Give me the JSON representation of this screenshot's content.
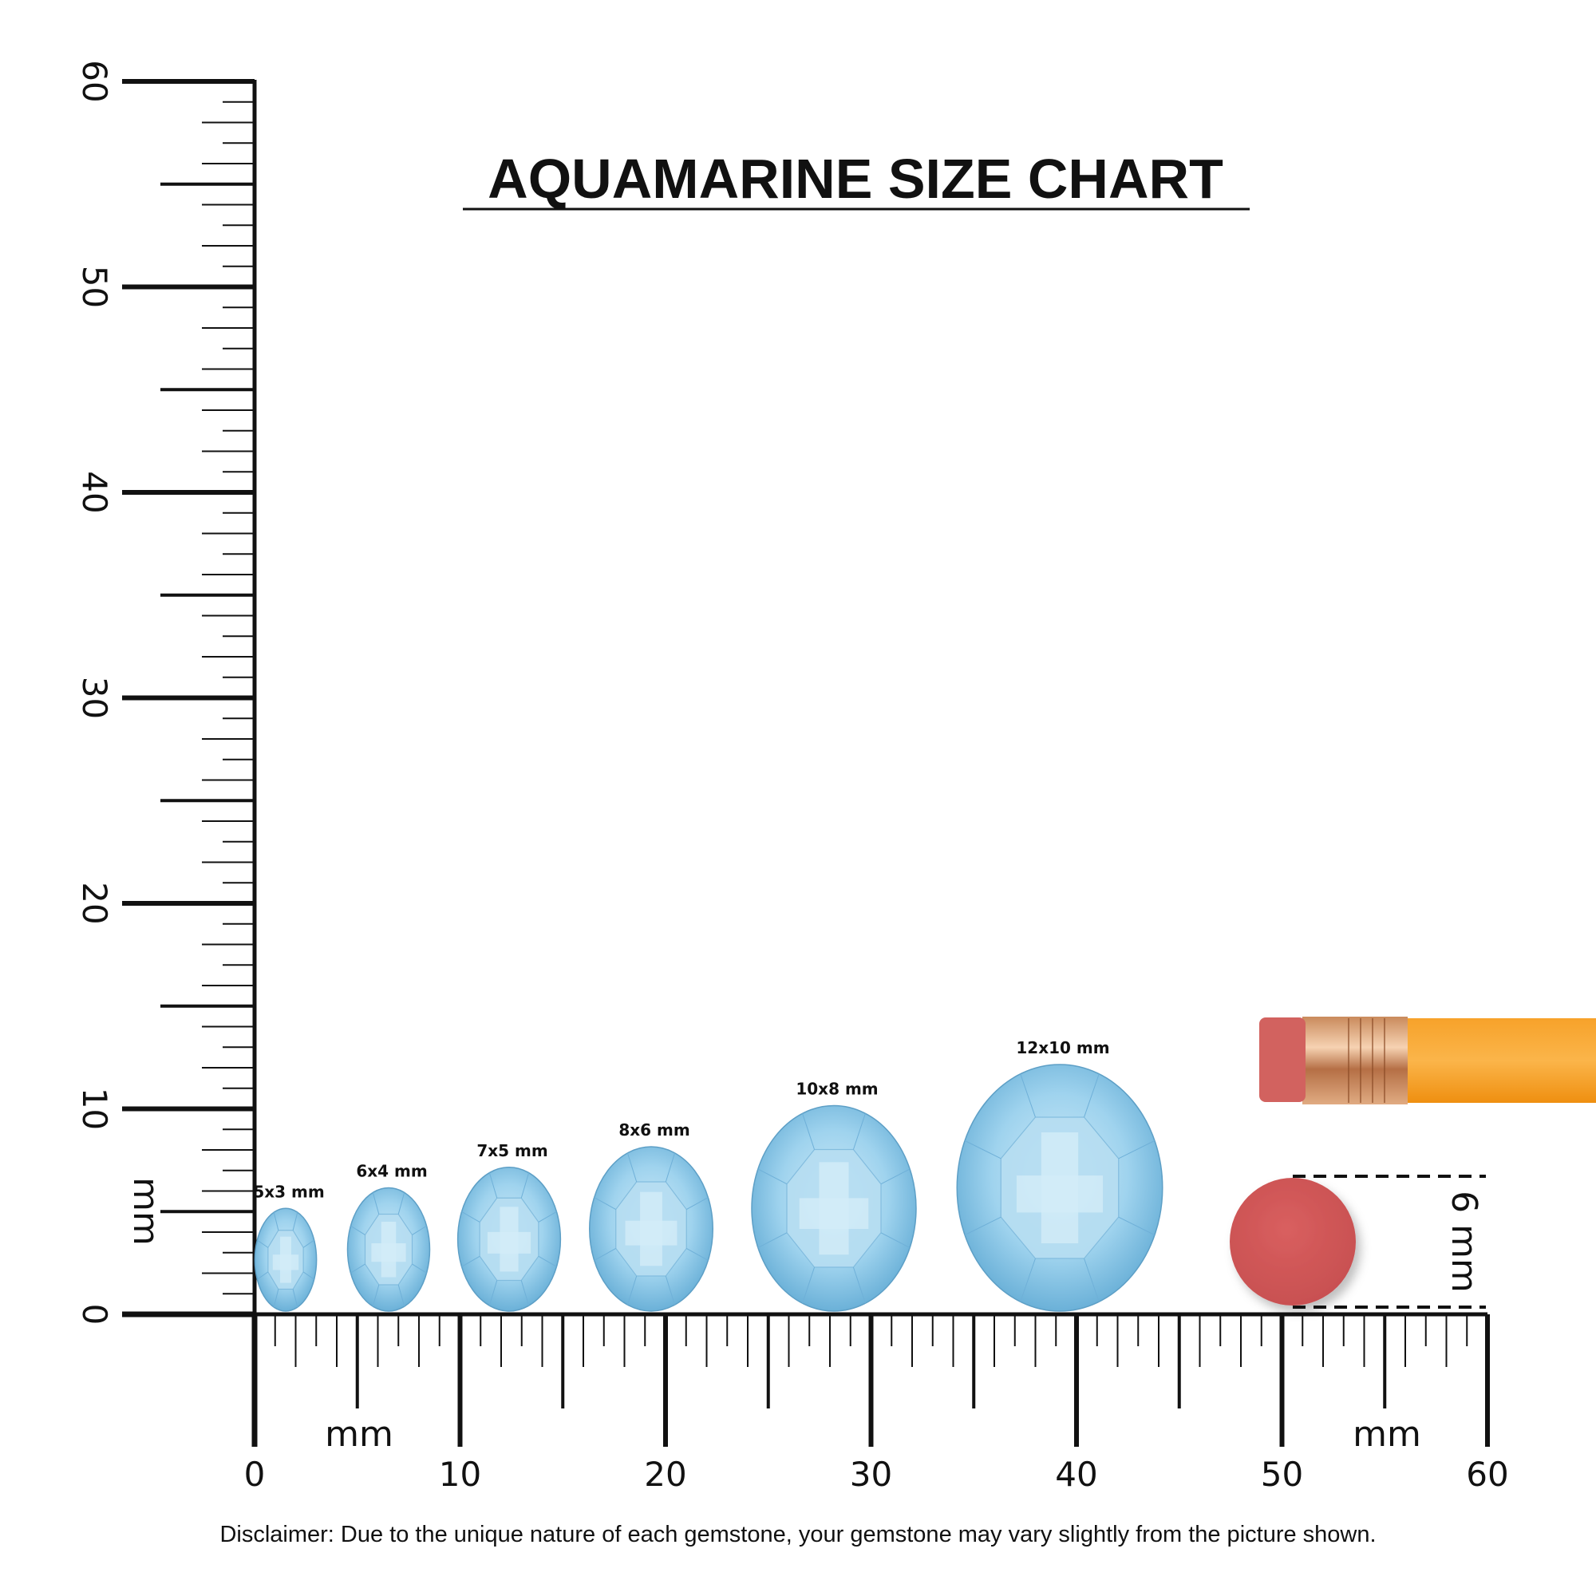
{
  "title": "AQUAMARINE SIZE CHART",
  "ruler": {
    "unit_label": "mm",
    "max_mm": 60,
    "labels": [
      "0",
      "10",
      "20",
      "30",
      "40",
      "50",
      "60"
    ]
  },
  "gems": [
    {
      "label": "5x3 mm",
      "length_mm": 5,
      "width_mm": 3
    },
    {
      "label": "6x4 mm",
      "length_mm": 6,
      "width_mm": 4
    },
    {
      "label": "7x5 mm",
      "length_mm": 7,
      "width_mm": 5
    },
    {
      "label": "8x6 mm",
      "length_mm": 8,
      "width_mm": 6
    },
    {
      "label": "10x8 mm",
      "length_mm": 10,
      "width_mm": 8
    },
    {
      "label": "12x10 mm",
      "length_mm": 12,
      "width_mm": 10
    }
  ],
  "reference": {
    "eraser_label": "6 mm",
    "eraser_color": "#d35a5a",
    "pencil_color": "#f59a1b"
  },
  "gem_color": "#8fc9e6",
  "disclaimer": "Disclaimer: Due to the unique nature of each gemstone, your gemstone may vary slightly from the picture shown."
}
